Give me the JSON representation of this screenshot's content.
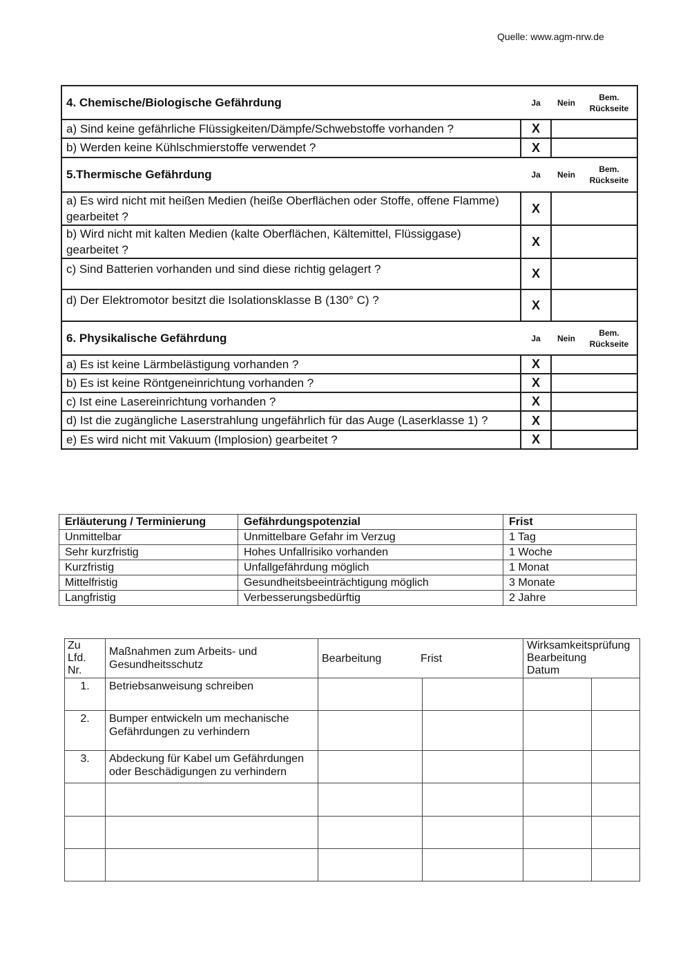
{
  "source": "Quelle: www.agm-nrw.de",
  "col_labels": {
    "ja": "Ja",
    "nein": "Nein",
    "bem1": "Bem.",
    "bem2": "Rückseite"
  },
  "sections": [
    {
      "title": "4. Chemische/Biologische Gefährdung",
      "items": [
        {
          "text": "a) Sind keine gefährliche Flüssigkeiten/Dämpfe/Schwebstoffe vorhanden ?",
          "ja": "X"
        },
        {
          "text": "b) Werden keine Kühlschmierstoffe verwendet ?",
          "ja": "X"
        }
      ]
    },
    {
      "title": "5.Thermische Gefährdung",
      "items": [
        {
          "text": "a) Es wird nicht mit heißen Medien (heiße Oberflächen oder Stoffe, offene Flamme) gearbeitet ?",
          "ja": "X"
        },
        {
          "text": "b) Wird nicht mit kalten Medien (kalte Oberflächen, Kältemittel, Flüssiggase) gearbeitet ?",
          "ja": "X"
        },
        {
          "text": "c) Sind Batterien vorhanden und sind diese richtig gelagert ?",
          "ja": "X"
        },
        {
          "text": "d) Der Elektromotor besitzt die Isolationsklasse B (130° C) ?",
          "ja": "X"
        }
      ]
    },
    {
      "title": "6. Physikalische Gefährdung",
      "items": [
        {
          "text": "a) Es ist keine Lärmbelästigung vorhanden ?",
          "ja": "X"
        },
        {
          "text": "b) Es ist keine Röntgeneinrichtung vorhanden ?",
          "ja": "X"
        },
        {
          "text": "c) Ist eine Lasereinrichtung vorhanden ?",
          "ja": "X"
        },
        {
          "text": "d) Ist die zugängliche Laserstrahlung ungefährlich für das Auge (Laserklasse 1) ?",
          "ja": "X"
        },
        {
          "text": "e) Es wird nicht mit Vakuum (Implosion) gearbeitet ?",
          "ja": "X"
        }
      ]
    }
  ],
  "legend_table": {
    "headers": [
      "Erläuterung / Terminierung",
      "Gefährdungspotenzial",
      "Frist"
    ],
    "rows": [
      [
        "Unmittelbar",
        "Unmittelbare Gefahr im Verzug",
        "1 Tag"
      ],
      [
        "Sehr kurzfristig",
        "Hohes Unfallrisiko vorhanden",
        "1 Woche"
      ],
      [
        "Kurzfristig",
        "Unfallgefährdung möglich",
        "1 Monat"
      ],
      [
        "Mittelfristig",
        "Gesundheitsbeeinträchtigung möglich",
        "3 Monate"
      ],
      [
        "Langfristig",
        "Verbesserungsbedürftig",
        "2 Jahre"
      ]
    ]
  },
  "measures_table": {
    "h_nr": [
      "Zu",
      "Lfd.",
      "Nr."
    ],
    "h_measure": [
      "Maßnahmen zum Arbeits- und",
      "Gesundheitsschutz"
    ],
    "h_bearbeitung": "Bearbeitung",
    "h_frist": "Frist",
    "h_wirk": [
      "Wirksamkeitsprüfung",
      "Bearbeitung",
      "Datum"
    ],
    "rows": [
      {
        "nr": "1.",
        "measure": [
          "Betriebsanweisung schreiben"
        ]
      },
      {
        "nr": "2.",
        "measure": [
          "Bumper entwickeln um mechanische",
          "Gefährdungen zu verhindern"
        ]
      },
      {
        "nr": "3.",
        "measure": [
          "Abdeckung für Kabel um Gefährdungen",
          "oder Beschädigungen zu verhindern"
        ]
      },
      {
        "nr": "",
        "measure": []
      },
      {
        "nr": "",
        "measure": []
      },
      {
        "nr": "",
        "measure": []
      }
    ]
  }
}
